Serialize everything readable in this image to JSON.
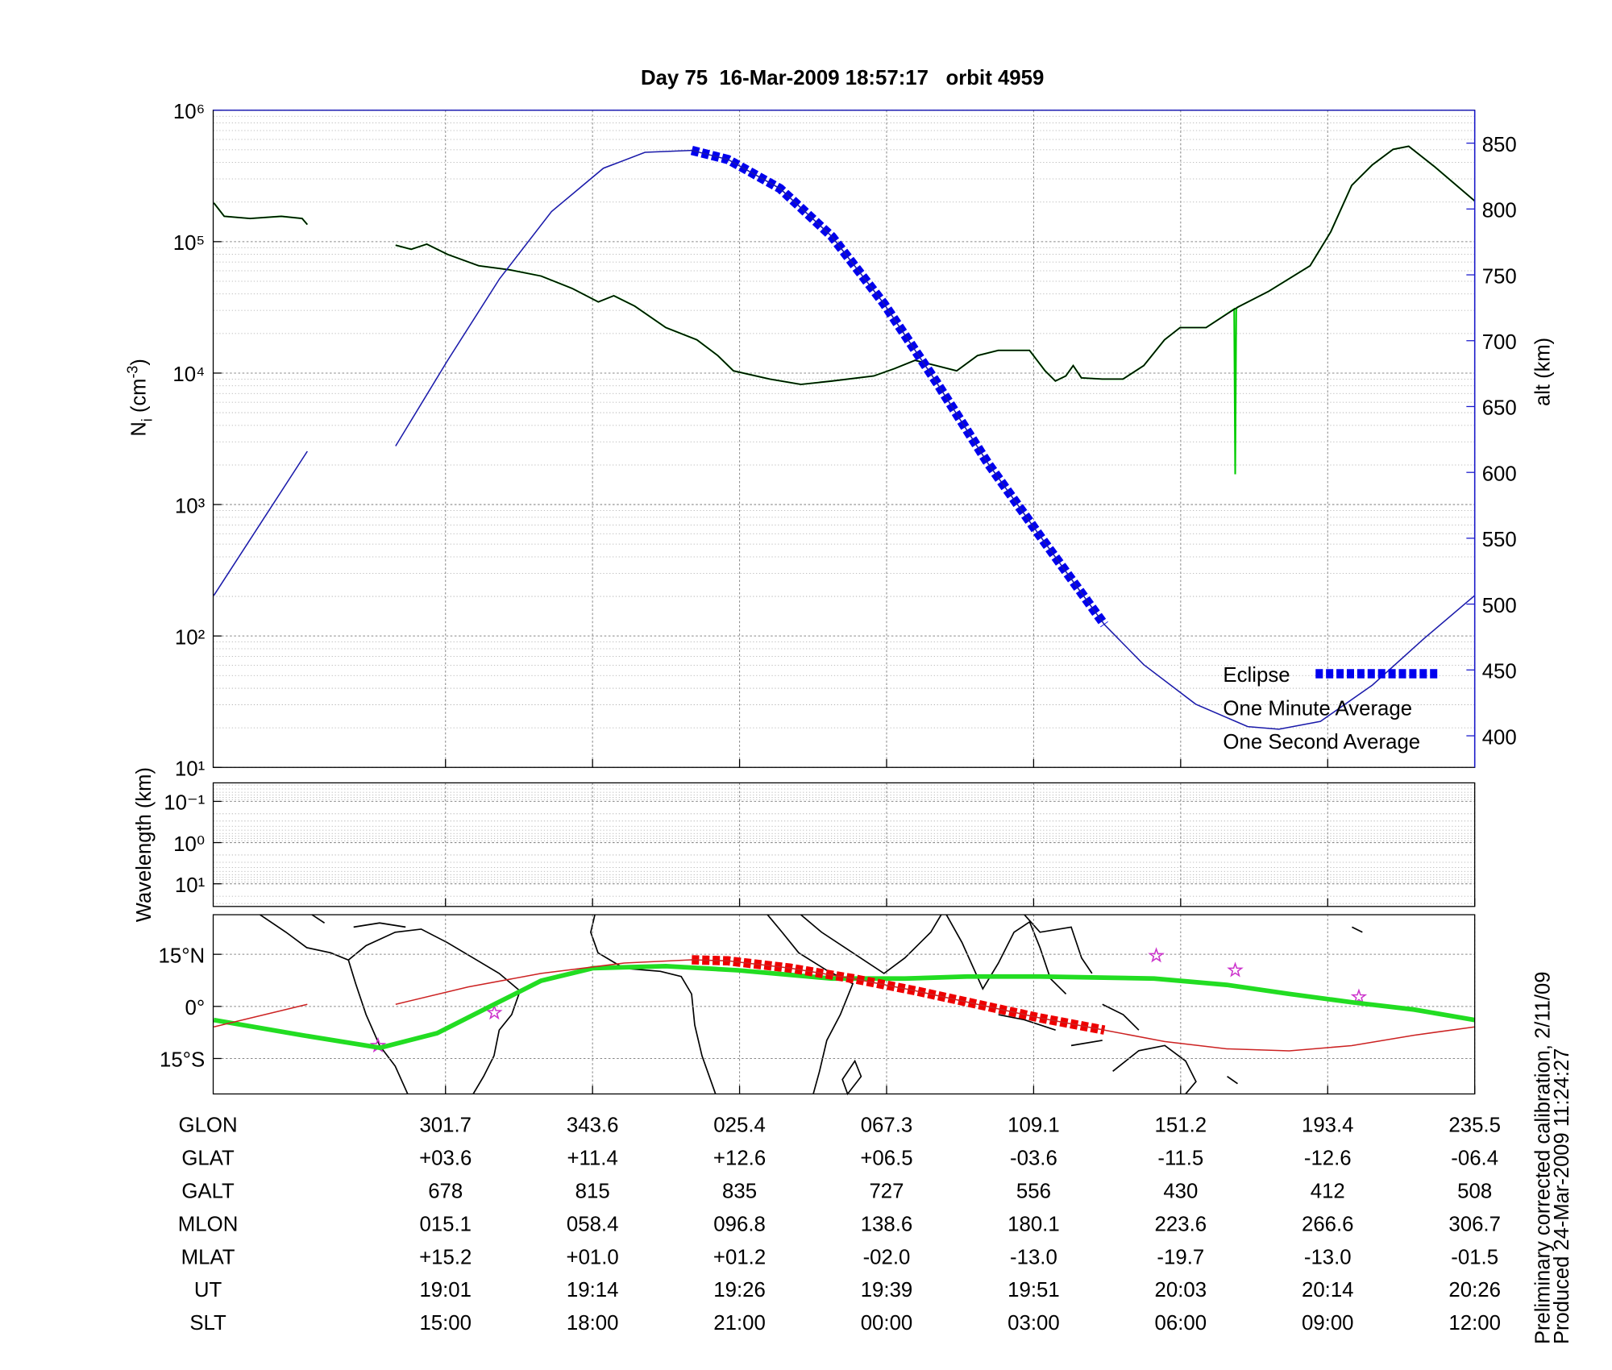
{
  "title": "Day 75  16-Mar-2009 18:57:17   orbit 4959",
  "chart_data": [
    {
      "type": "line",
      "y_label": [
        "N",
        "i",
        " (cm",
        "-3",
        ")"
      ],
      "y2_label": "alt (km)",
      "xlim": [
        -1.58,
        7
      ],
      "xticks": [
        0,
        1,
        2,
        3,
        4,
        5,
        6,
        7
      ],
      "yscale": "log",
      "ylim": [
        10,
        1000000
      ],
      "yticks": [
        {
          "value": 10,
          "label": "10¹"
        },
        {
          "value": 100,
          "label": "10²"
        },
        {
          "value": 1000,
          "label": "10³"
        },
        {
          "value": 10000,
          "label": "10⁴"
        },
        {
          "value": 100000,
          "label": "10⁵"
        },
        {
          "value": 1000000,
          "label": "10⁶"
        }
      ],
      "y2lim": [
        376,
        875
      ],
      "y2ticks": [
        400,
        450,
        500,
        550,
        600,
        650,
        700,
        750,
        800,
        850
      ],
      "y2color": "#1a1acc",
      "grid": true,
      "legend": "lower right",
      "series": [
        {
          "color": "#1a1aaa",
          "axis": "y2",
          "style": "thin",
          "x": [
            -1.576,
            -0.94,
            -0.6,
            -0.339,
            0.014,
            0.367,
            0.721,
            1.074,
            1.357,
            1.675,
            1.922,
            2.276,
            2.629,
            2.982,
            3.336,
            3.689,
            4.042,
            4.481,
            4.749,
            5.102,
            5.456,
            5.668,
            5.951,
            6.304,
            6.657,
            7
          ],
          "values": [
            506.5,
            616,
            null,
            620,
            685,
            747,
            798,
            831,
            843,
            844.5,
            837.5,
            815.5,
            779,
            728,
            669,
            607,
            552,
            484.5,
            454,
            424,
            407,
            405,
            411,
            438.5,
            474,
            506.5
          ]
        },
        {
          "name": "Eclipse",
          "color": "#0000ee",
          "axis": "y2",
          "style": "dashed",
          "x": [
            1.675,
            1.922,
            2.276,
            2.629,
            2.982,
            3.336,
            3.689,
            4.042,
            4.481
          ],
          "values": [
            844.5,
            837.5,
            815.5,
            779,
            728,
            669,
            607,
            552,
            484.5
          ]
        },
        {
          "name": "One Minute Average",
          "color": "#000000",
          "style": "thin",
          "x": [
            -1.576,
            -1.505,
            -1.329,
            -1.117,
            -0.975,
            -0.94,
            -0.6,
            -0.339,
            -0.233,
            -0.127,
            0.014,
            0.226,
            0.438,
            0.65,
            0.862,
            1.039,
            1.145,
            1.286,
            1.498,
            1.71,
            1.852,
            1.958,
            2.205,
            2.417,
            2.629,
            2.912,
            3.053,
            3.194,
            3.336,
            3.477,
            3.618,
            3.76,
            3.972,
            4.078,
            4.148,
            4.219,
            4.269,
            4.325,
            4.466,
            4.608,
            4.749,
            4.89,
            4.996,
            5.173,
            5.385,
            5.597,
            5.88,
            6.021,
            6.163,
            6.304,
            6.445,
            6.551,
            6.728,
            7
          ],
          "values": [
            197000,
            156000,
            150000,
            156000,
            150000,
            135000,
            null,
            94000,
            87500,
            95700,
            80000,
            65600,
            61000,
            54700,
            44100,
            34800,
            38800,
            32400,
            22200,
            17900,
            13600,
            10400,
            9000,
            8200,
            8700,
            9500,
            10800,
            12500,
            11400,
            10400,
            13600,
            14900,
            14900,
            10400,
            8700,
            9500,
            11400,
            9200,
            9000,
            9000,
            11400,
            17900,
            22200,
            22200,
            31600,
            41800,
            65600,
            119000,
            268000,
            384000,
            504000,
            532000,
            371000,
            204000
          ]
        },
        {
          "name": "One Second Average",
          "color": "#00cc00",
          "style": "medium",
          "x": [
            -1.576,
            -1.505,
            -1.329,
            -1.117,
            -0.975,
            -0.94,
            -0.6,
            -0.339,
            -0.233,
            -0.127,
            0.014,
            0.226,
            0.438,
            0.65,
            0.862,
            1.039,
            1.145,
            1.286,
            1.498,
            1.71,
            1.852,
            1.958,
            2.205,
            2.417,
            2.629,
            2.912,
            3.053,
            3.194,
            3.336,
            3.477,
            3.618,
            3.76,
            3.972,
            4.078,
            4.148,
            4.219,
            4.269,
            4.325,
            4.466,
            4.608,
            4.749,
            4.89,
            4.996,
            5.173,
            5.364,
            5.371,
            5.378,
            5.385,
            5.597,
            5.88,
            6.021,
            6.163,
            6.304,
            6.445,
            6.551,
            6.728,
            7
          ],
          "values": [
            197000,
            156000,
            150000,
            156000,
            150000,
            135000,
            null,
            94000,
            87500,
            95700,
            80000,
            65600,
            61000,
            54700,
            44100,
            34800,
            38800,
            32400,
            22200,
            17900,
            13600,
            10400,
            9000,
            8200,
            8700,
            9500,
            10800,
            12500,
            11400,
            10400,
            13600,
            14900,
            14900,
            10400,
            8700,
            9500,
            11400,
            9200,
            9000,
            9000,
            11400,
            17900,
            22200,
            22200,
            30700,
            1700,
            30700,
            31600,
            41800,
            65600,
            119000,
            268000,
            384000,
            504000,
            532000,
            371000,
            204000
          ]
        }
      ]
    },
    {
      "type": "line",
      "y_label": "Wavelength (km)",
      "xlim": [
        -1.58,
        7
      ],
      "xticks": [
        0,
        1,
        2,
        3,
        4,
        5,
        6,
        7
      ],
      "yscale": "log",
      "ylim": [
        35.5,
        0.0355
      ],
      "yticks": [
        {
          "value": 0.1,
          "label": "10⁻¹"
        },
        {
          "value": 1,
          "label": "10⁰"
        },
        {
          "value": 10,
          "label": "10¹"
        }
      ],
      "grid": true,
      "series": []
    },
    {
      "type": "line",
      "xlim": [
        -1.58,
        7
      ],
      "xticks": [
        0,
        1,
        2,
        3,
        4,
        5,
        6,
        7
      ],
      "ylim": [
        -25.2,
        26.4
      ],
      "yticks": [
        {
          "value": -15,
          "label": "15°S"
        },
        {
          "value": 0,
          "label": "0°"
        },
        {
          "value": 15,
          "label": "15°N"
        }
      ],
      "grid": true,
      "series": [
        {
          "color": "#cc2222",
          "style": "thin",
          "x": [
            -1.576,
            -0.94,
            -0.6,
            -0.339,
            0.155,
            0.65,
            1.216,
            1.675,
            1.922,
            2.346,
            2.77,
            3.194,
            3.618,
            4.042,
            4.481,
            4.89,
            5.314,
            5.738,
            6.163,
            6.587,
            7
          ],
          "values": [
            -5.9,
            0.6,
            null,
            0.6,
            5.6,
            9.5,
            12.5,
            13.4,
            13.1,
            11,
            8,
            4.5,
            0.6,
            -3.3,
            -6.8,
            -10.1,
            -12.2,
            -12.8,
            -11.3,
            -8.3,
            -5.9
          ]
        },
        {
          "color": "#ee0000",
          "style": "dashed",
          "x": [
            1.675,
            1.922,
            2.346,
            2.77,
            3.194,
            3.618,
            4.042,
            4.481
          ],
          "values": [
            13.4,
            13.1,
            11,
            8,
            4.5,
            0.6,
            -3.3,
            -6.8
          ]
        },
        {
          "color": "#22dd22",
          "style": "thick",
          "x": [
            -1.576,
            -0.975,
            -0.445,
            -0.057,
            0.332,
            0.65,
            1.004,
            1.498,
            1.993,
            2.629,
            3.124,
            3.548,
            4.042,
            4.82,
            5.314,
            5.738,
            6.163,
            6.587,
            7
          ],
          "values": [
            -3.9,
            -8.3,
            -11.9,
            -7.7,
            0.6,
            7.4,
            11,
            11.6,
            10.4,
            8,
            8,
            8.6,
            8.6,
            8,
            6.2,
            3.6,
            1.2,
            -0.9,
            -3.9
          ]
        },
        {
          "color": "#cc33cc",
          "style": "star",
          "x": [
            -0.459,
            0.332,
            4.834,
            5.371,
            6.212
          ],
          "values": [
            -11.3,
            -1.8,
            14.6,
            10.4,
            2.7
          ]
        }
      ]
    }
  ],
  "table": {
    "rows": [
      {
        "label": "GLON",
        "values": [
          "301.7",
          "343.6",
          "025.4",
          "067.3",
          "109.1",
          "151.2",
          "193.4",
          "235.5"
        ]
      },
      {
        "label": "GLAT",
        "values": [
          "+03.6",
          "+11.4",
          "+12.6",
          "+06.5",
          "-03.6",
          "-11.5",
          "-12.6",
          "-06.4"
        ]
      },
      {
        "label": "GALT",
        "values": [
          "678",
          "815",
          "835",
          "727",
          "556",
          "430",
          "412",
          "508"
        ]
      },
      {
        "label": "MLON",
        "values": [
          "015.1",
          "058.4",
          "096.8",
          "138.6",
          "180.1",
          "223.6",
          "266.6",
          "306.7"
        ]
      },
      {
        "label": "MLAT",
        "values": [
          "+15.2",
          "+01.0",
          "+01.2",
          "-02.0",
          "-13.0",
          "-19.7",
          "-13.0",
          "-01.5"
        ]
      },
      {
        "label": "UT",
        "values": [
          "19:01",
          "19:14",
          "19:26",
          "19:39",
          "19:51",
          "20:03",
          "20:14",
          "20:26"
        ]
      },
      {
        "label": "SLT",
        "values": [
          "15:00",
          "18:00",
          "21:00",
          "00:00",
          "03:00",
          "06:00",
          "09:00",
          "12:00"
        ]
      }
    ]
  },
  "footnotes": [
    "Preliminary corrected calibration, 2/11/09",
    "Produced 24-Mar-2009 11:24:27"
  ]
}
